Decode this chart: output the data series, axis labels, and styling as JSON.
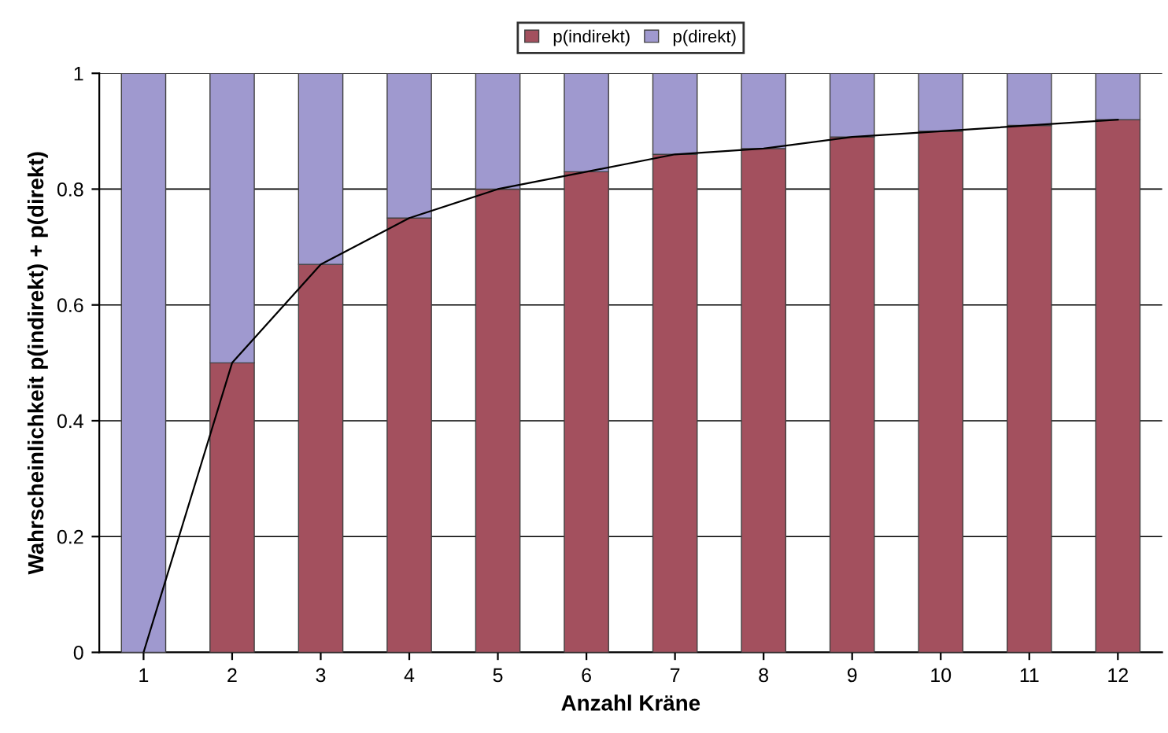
{
  "chart_data": {
    "type": "bar",
    "stacked": true,
    "xlabel": "Anzahl Kräne",
    "ylabel": "Wahrscheinlichkeit p(indirekt) + p(direkt)",
    "categories": [
      "1",
      "2",
      "3",
      "4",
      "5",
      "6",
      "7",
      "8",
      "9",
      "10",
      "11",
      "12"
    ],
    "series": [
      {
        "name": "p(indirekt)",
        "color": "#a3505e",
        "values": [
          0,
          0.5,
          0.67,
          0.75,
          0.8,
          0.83,
          0.86,
          0.87,
          0.89,
          0.9,
          0.91,
          0.92
        ]
      },
      {
        "name": "p(direkt)",
        "color": "#9f99cf",
        "values": [
          1,
          0.5,
          0.33,
          0.25,
          0.2,
          0.17,
          0.14,
          0.13,
          0.11,
          0.1,
          0.09,
          0.08
        ]
      },
      {
        "type": "line",
        "color": "#000000",
        "values": [
          0,
          0.5,
          0.67,
          0.75,
          0.8,
          0.83,
          0.86,
          0.87,
          0.89,
          0.9,
          0.91,
          0.92
        ]
      }
    ],
    "ylim": [
      0,
      1
    ],
    "yticks": [
      0,
      0.2,
      0.4,
      0.6,
      0.8,
      1
    ],
    "grid": "y",
    "legend": "top"
  }
}
